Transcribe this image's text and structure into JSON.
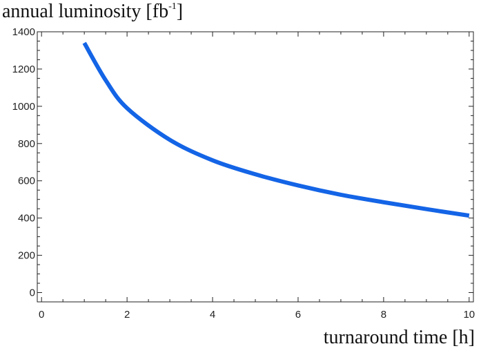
{
  "chart_data": {
    "type": "line",
    "xlabel": "turnaround time [h]",
    "ylabel": {
      "prefix": "annual luminosity [fb",
      "sup": "-1",
      "suffix": "]"
    },
    "xlim": [
      -0.1,
      10.1
    ],
    "ylim": [
      -50,
      1400
    ],
    "xticks": [
      0,
      2,
      4,
      6,
      8,
      10
    ],
    "yticks": [
      0,
      200,
      400,
      600,
      800,
      1000,
      1200,
      1400
    ],
    "grid": false,
    "line_color": "#1464e6",
    "series": [
      {
        "x": [
          1.0,
          1.5,
          2.0,
          3.0,
          4.0,
          5.0,
          6.0,
          7.0,
          8.0,
          9.0,
          10.0
        ],
        "y": [
          1340,
          1140,
          990,
          820,
          710,
          635,
          575,
          525,
          485,
          448,
          413
        ]
      }
    ]
  }
}
